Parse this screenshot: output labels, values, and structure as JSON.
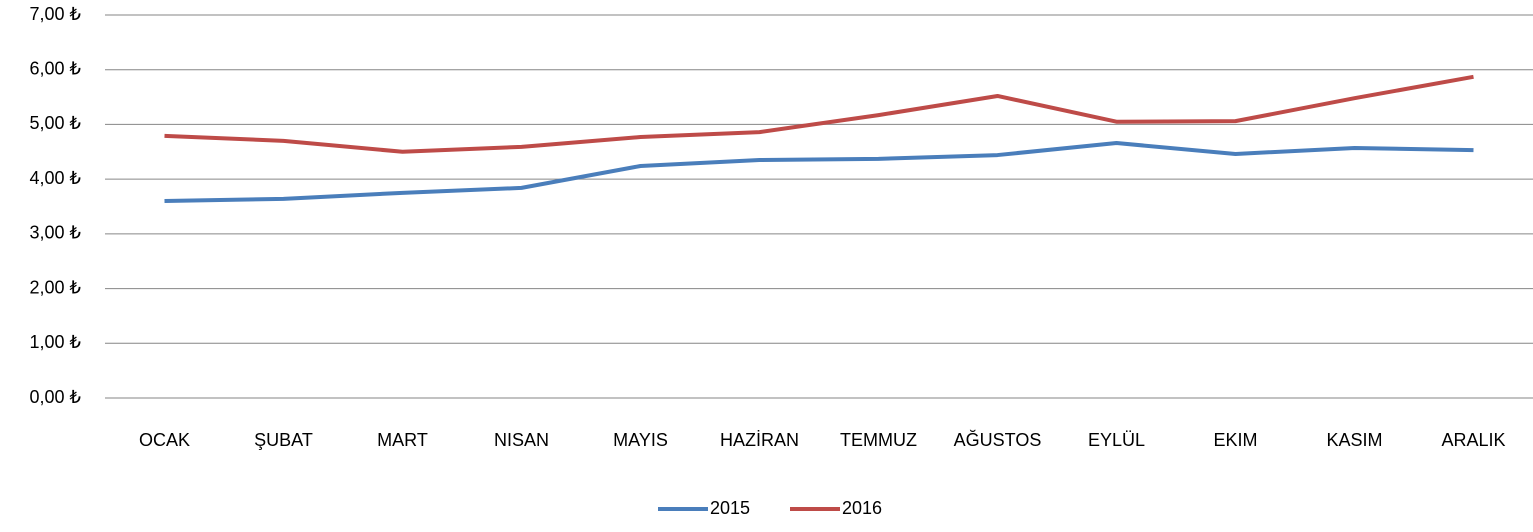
{
  "chart_data": {
    "type": "line",
    "categories": [
      "OCAK",
      "ŞUBAT",
      "MART",
      "NISAN",
      "MAYIS",
      "HAZİRAN",
      "TEMMUZ",
      "AĞUSTOS",
      "EYLÜL",
      "EKIM",
      "KASIM",
      "ARALIK"
    ],
    "series": [
      {
        "name": "2015",
        "color": "#4a7ebb",
        "values": [
          3.6,
          3.64,
          3.75,
          3.84,
          4.24,
          4.35,
          4.37,
          4.44,
          4.66,
          4.46,
          4.57,
          4.53
        ]
      },
      {
        "name": "2016",
        "color": "#be4b48",
        "values": [
          4.79,
          4.7,
          4.5,
          4.59,
          4.77,
          4.86,
          5.17,
          5.52,
          5.05,
          5.06,
          5.48,
          5.87
        ]
      }
    ],
    "ylim": [
      0,
      7
    ],
    "yticks": [
      {
        "value": 0,
        "label": "0,00 ₺"
      },
      {
        "value": 1,
        "label": "1,00 ₺"
      },
      {
        "value": 2,
        "label": "2,00 ₺"
      },
      {
        "value": 3,
        "label": "3,00 ₺"
      },
      {
        "value": 4,
        "label": "4,00 ₺"
      },
      {
        "value": 5,
        "label": "5,00 ₺"
      },
      {
        "value": 6,
        "label": "6,00 ₺"
      },
      {
        "value": 7,
        "label": "7,00 ₺"
      }
    ],
    "grid": true,
    "legend": "bottom"
  }
}
